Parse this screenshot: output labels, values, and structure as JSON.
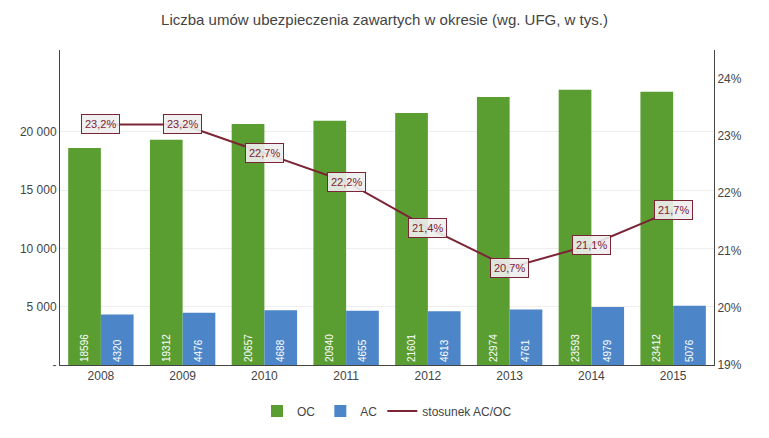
{
  "chart_data": {
    "type": "bar",
    "title": "Liczba umów ubezpieczenia zawartych w okresie (wg. UFG, w tys.)",
    "categories": [
      "2008",
      "2009",
      "2010",
      "2011",
      "2012",
      "2013",
      "2014",
      "2015"
    ],
    "series": [
      {
        "name": "OC",
        "type": "bar",
        "color": "#5a9e32",
        "values": [
          18596,
          19312,
          20657,
          20940,
          21601,
          22974,
          23593,
          23412
        ]
      },
      {
        "name": "AC",
        "type": "bar",
        "color": "#4d86c8",
        "values": [
          4320,
          4476,
          4688,
          4655,
          4613,
          4761,
          4979,
          5076
        ]
      },
      {
        "name": "stosunek AC/OC",
        "type": "line",
        "axis": "y2",
        "color": "#7b2435",
        "values": [
          23.2,
          23.2,
          22.7,
          22.2,
          21.4,
          20.7,
          21.1,
          21.7
        ],
        "value_labels": [
          "23,2%",
          "23,2%",
          "22,7%",
          "22,2%",
          "21,4%",
          "20,7%",
          "21,1%",
          "21,7%"
        ]
      }
    ],
    "ylim": [
      0,
      27000
    ],
    "yticks": [
      {
        "value": 0,
        "label": "-"
      },
      {
        "value": 5000,
        "label": "5 000"
      },
      {
        "value": 10000,
        "label": "10 000"
      },
      {
        "value": 15000,
        "label": "15 000"
      },
      {
        "value": 20000,
        "label": "20 000"
      }
    ],
    "y2lim": [
      19,
      24.5
    ],
    "y2ticks": [
      {
        "value": 19,
        "label": "19%"
      },
      {
        "value": 20,
        "label": "20%"
      },
      {
        "value": 21,
        "label": "21%"
      },
      {
        "value": 22,
        "label": "22%"
      },
      {
        "value": 23,
        "label": "23%"
      },
      {
        "value": 24,
        "label": "24%"
      }
    ],
    "grid": true,
    "legend": "bottom",
    "data_labels": true
  }
}
